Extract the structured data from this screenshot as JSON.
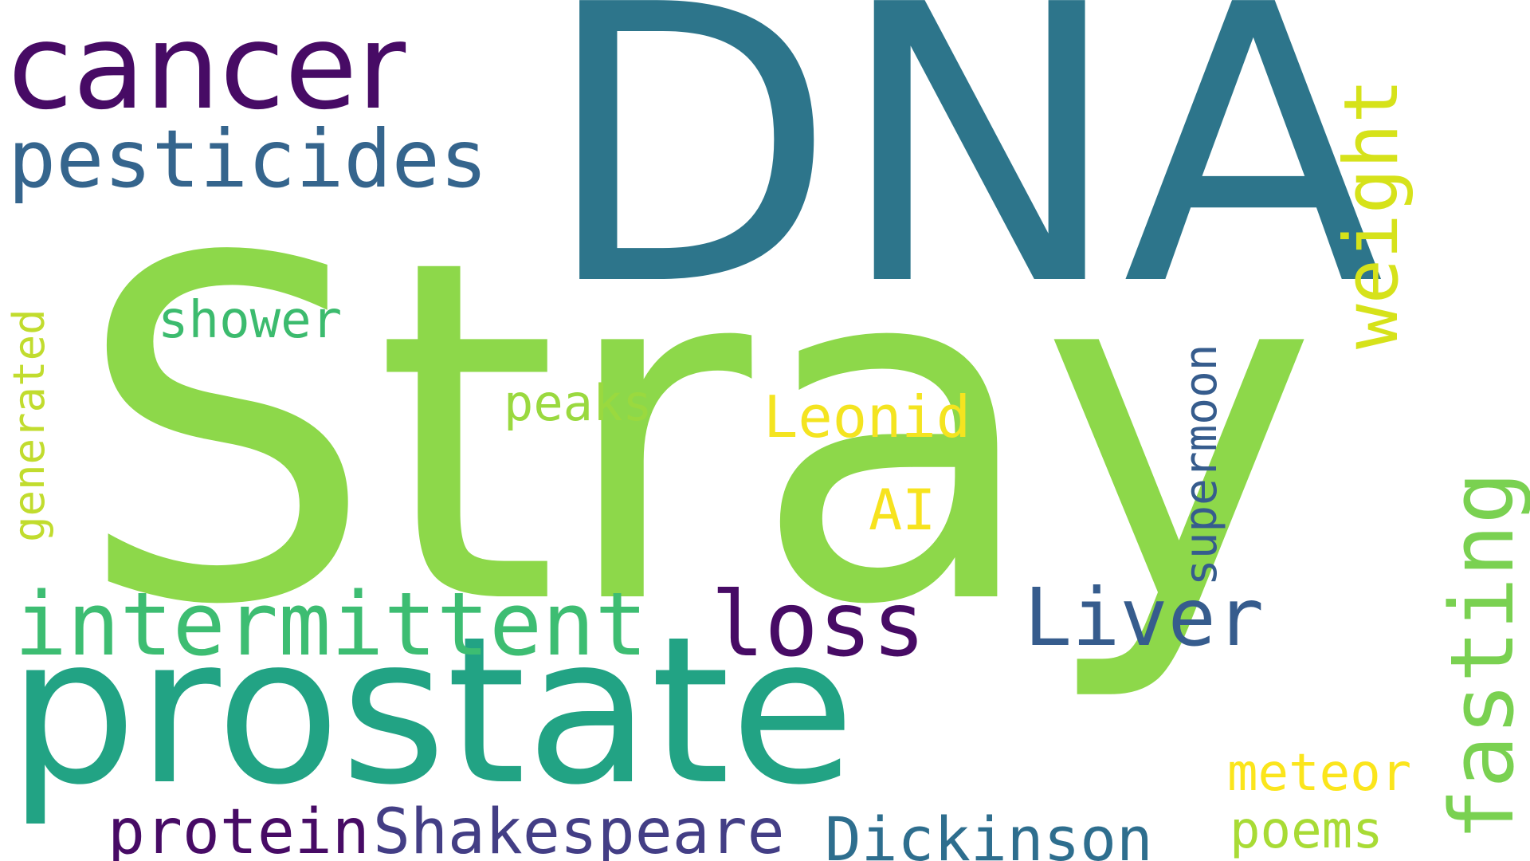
{
  "word_cloud": {
    "background": "#ffffff",
    "words": {
      "dna": {
        "text": "DNA",
        "color": "#2d758b"
      },
      "stray": {
        "text": "Stray",
        "color": "#8dd84a"
      },
      "prostate": {
        "text": "prostate",
        "color": "#22a384"
      },
      "cancer": {
        "text": "cancer",
        "color": "#470b65"
      },
      "pesticides": {
        "text": "pesticides",
        "color": "#35658d"
      },
      "generated": {
        "text": "generated",
        "color": "#c1dc2e"
      },
      "shower": {
        "text": "shower",
        "color": "#3cbb6e"
      },
      "peaks": {
        "text": "peaks",
        "color": "#9ad93f"
      },
      "leonid": {
        "text": "Leonid",
        "color": "#f4e420"
      },
      "ai": {
        "text": "AI",
        "color": "#f7e31e"
      },
      "supermoon": {
        "text": "supermoon",
        "color": "#365c8d"
      },
      "weight": {
        "text": "weight",
        "color": "#d6e21a"
      },
      "intermittent": {
        "text": "intermittent",
        "color": "#3dbd72"
      },
      "loss": {
        "text": "loss",
        "color": "#470b65"
      },
      "liver": {
        "text": "Liver",
        "color": "#365c8d"
      },
      "fasting": {
        "text": "fasting",
        "color": "#7ad151"
      },
      "meteor": {
        "text": "meteor",
        "color": "#fbe51c"
      },
      "poems": {
        "text": "poems",
        "color": "#a8db35"
      },
      "protein": {
        "text": "protein",
        "color": "#470b65"
      },
      "shakespeare": {
        "text": "Shakespeare",
        "color": "#433e85"
      },
      "dickinson": {
        "text": "Dickinson",
        "color": "#2e6e8e"
      }
    }
  }
}
